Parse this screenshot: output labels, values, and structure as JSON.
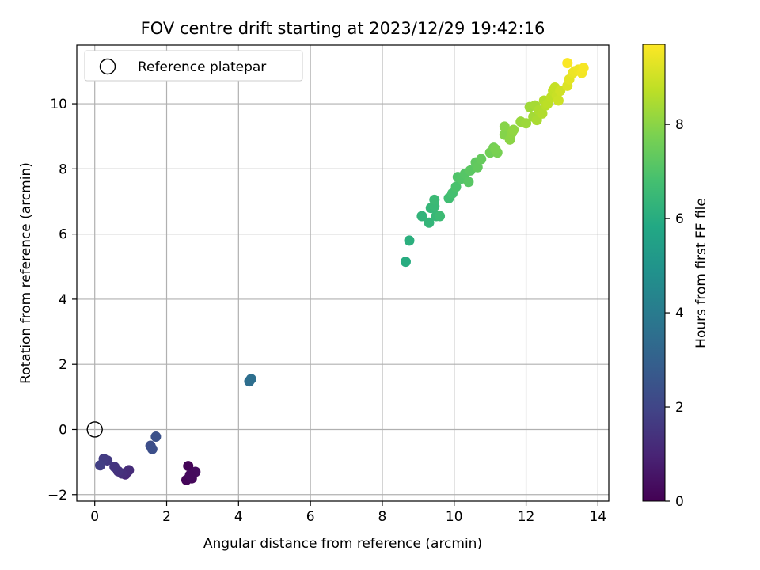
{
  "chart_data": {
    "type": "scatter",
    "title": "FOV centre drift starting at 2023/12/29 19:42:16",
    "xlabel": "Angular distance from reference (arcmin)",
    "ylabel": "Rotation from reference (arcmin)",
    "xlim": [
      -0.5,
      14.3
    ],
    "ylim": [
      -2.2,
      11.8
    ],
    "xticks": [
      0,
      2,
      4,
      6,
      8,
      10,
      12,
      14
    ],
    "yticks": [
      -2,
      0,
      2,
      4,
      6,
      8,
      10
    ],
    "grid": true,
    "legend": {
      "placement": "top-left",
      "entries": [
        "Reference platepar"
      ]
    },
    "reference_point": {
      "x": 0,
      "y": 0,
      "label": "Reference platepar"
    },
    "colorbar": {
      "label": "Hours from first FF file",
      "colormap": "viridis",
      "range": [
        0,
        9.7
      ],
      "ticks": [
        0,
        2,
        4,
        6,
        8
      ]
    },
    "series": [
      {
        "points": [
          {
            "x": 2.6,
            "y": -1.12,
            "t": 0.1
          },
          {
            "x": 2.55,
            "y": -1.55,
            "t": 0.15
          },
          {
            "x": 2.7,
            "y": -1.5,
            "t": 0.2
          },
          {
            "x": 2.8,
            "y": -1.3,
            "t": 0.3
          },
          {
            "x": 2.65,
            "y": -1.4,
            "t": 0.25
          },
          {
            "x": 0.85,
            "y": -1.38,
            "t": 1.1
          },
          {
            "x": 0.9,
            "y": -1.3,
            "t": 1.15
          },
          {
            "x": 0.95,
            "y": -1.25,
            "t": 1.2
          },
          {
            "x": 0.75,
            "y": -1.35,
            "t": 1.3
          },
          {
            "x": 0.65,
            "y": -1.28,
            "t": 1.4
          },
          {
            "x": 0.55,
            "y": -1.15,
            "t": 1.5
          },
          {
            "x": 0.35,
            "y": -0.95,
            "t": 1.6
          },
          {
            "x": 0.25,
            "y": -0.9,
            "t": 1.7
          },
          {
            "x": 0.15,
            "y": -1.1,
            "t": 1.8
          },
          {
            "x": 1.55,
            "y": -0.5,
            "t": 2.3
          },
          {
            "x": 1.6,
            "y": -0.6,
            "t": 2.35
          },
          {
            "x": 1.7,
            "y": -0.22,
            "t": 2.4
          },
          {
            "x": 4.3,
            "y": 1.48,
            "t": 3.5
          },
          {
            "x": 4.35,
            "y": 1.55,
            "t": 3.55
          },
          {
            "x": 8.65,
            "y": 5.15,
            "t": 6.0
          },
          {
            "x": 8.75,
            "y": 5.8,
            "t": 6.1
          },
          {
            "x": 9.1,
            "y": 6.55,
            "t": 6.3
          },
          {
            "x": 9.3,
            "y": 6.35,
            "t": 6.35
          },
          {
            "x": 9.35,
            "y": 6.8,
            "t": 6.4
          },
          {
            "x": 9.5,
            "y": 6.55,
            "t": 6.45
          },
          {
            "x": 9.45,
            "y": 6.85,
            "t": 6.5
          },
          {
            "x": 9.45,
            "y": 7.05,
            "t": 6.55
          },
          {
            "x": 9.6,
            "y": 6.55,
            "t": 6.6
          },
          {
            "x": 9.85,
            "y": 7.1,
            "t": 6.7
          },
          {
            "x": 9.95,
            "y": 7.25,
            "t": 6.8
          },
          {
            "x": 10.05,
            "y": 7.45,
            "t": 6.9
          },
          {
            "x": 10.1,
            "y": 7.75,
            "t": 7.0
          },
          {
            "x": 10.2,
            "y": 7.7,
            "t": 7.05
          },
          {
            "x": 10.3,
            "y": 7.85,
            "t": 7.1
          },
          {
            "x": 10.4,
            "y": 7.6,
            "t": 7.15
          },
          {
            "x": 10.45,
            "y": 7.95,
            "t": 7.2
          },
          {
            "x": 10.6,
            "y": 8.2,
            "t": 7.3
          },
          {
            "x": 10.65,
            "y": 8.05,
            "t": 7.35
          },
          {
            "x": 10.75,
            "y": 8.3,
            "t": 7.4
          },
          {
            "x": 11.0,
            "y": 8.5,
            "t": 7.6
          },
          {
            "x": 11.1,
            "y": 8.65,
            "t": 7.65
          },
          {
            "x": 11.2,
            "y": 8.5,
            "t": 7.7
          },
          {
            "x": 11.15,
            "y": 8.6,
            "t": 7.75
          },
          {
            "x": 11.4,
            "y": 9.05,
            "t": 7.9
          },
          {
            "x": 11.4,
            "y": 9.3,
            "t": 7.95
          },
          {
            "x": 11.55,
            "y": 8.9,
            "t": 8.0
          },
          {
            "x": 11.6,
            "y": 9.1,
            "t": 8.05
          },
          {
            "x": 11.65,
            "y": 9.2,
            "t": 8.1
          },
          {
            "x": 11.85,
            "y": 9.45,
            "t": 8.2
          },
          {
            "x": 12.0,
            "y": 9.4,
            "t": 8.25
          },
          {
            "x": 12.1,
            "y": 9.9,
            "t": 8.3
          },
          {
            "x": 12.2,
            "y": 9.6,
            "t": 8.35
          },
          {
            "x": 12.25,
            "y": 9.95,
            "t": 8.4
          },
          {
            "x": 12.3,
            "y": 9.5,
            "t": 8.45
          },
          {
            "x": 12.35,
            "y": 9.8,
            "t": 8.5
          },
          {
            "x": 12.45,
            "y": 9.7,
            "t": 8.55
          },
          {
            "x": 12.5,
            "y": 10.1,
            "t": 8.6
          },
          {
            "x": 12.55,
            "y": 9.95,
            "t": 8.65
          },
          {
            "x": 12.6,
            "y": 10.0,
            "t": 8.7
          },
          {
            "x": 12.7,
            "y": 10.2,
            "t": 8.75
          },
          {
            "x": 12.75,
            "y": 10.4,
            "t": 8.8
          },
          {
            "x": 12.8,
            "y": 10.5,
            "t": 8.85
          },
          {
            "x": 12.85,
            "y": 10.25,
            "t": 8.9
          },
          {
            "x": 12.9,
            "y": 10.1,
            "t": 8.95
          },
          {
            "x": 12.95,
            "y": 10.4,
            "t": 9.0
          },
          {
            "x": 13.15,
            "y": 10.55,
            "t": 9.2
          },
          {
            "x": 13.2,
            "y": 10.75,
            "t": 9.3
          },
          {
            "x": 13.3,
            "y": 10.95,
            "t": 9.4
          },
          {
            "x": 13.35,
            "y": 11.0,
            "t": 9.45
          },
          {
            "x": 13.45,
            "y": 11.05,
            "t": 9.5
          },
          {
            "x": 13.55,
            "y": 10.95,
            "t": 9.55
          },
          {
            "x": 13.6,
            "y": 11.1,
            "t": 9.6
          },
          {
            "x": 13.15,
            "y": 11.25,
            "t": 9.65
          }
        ]
      }
    ]
  }
}
